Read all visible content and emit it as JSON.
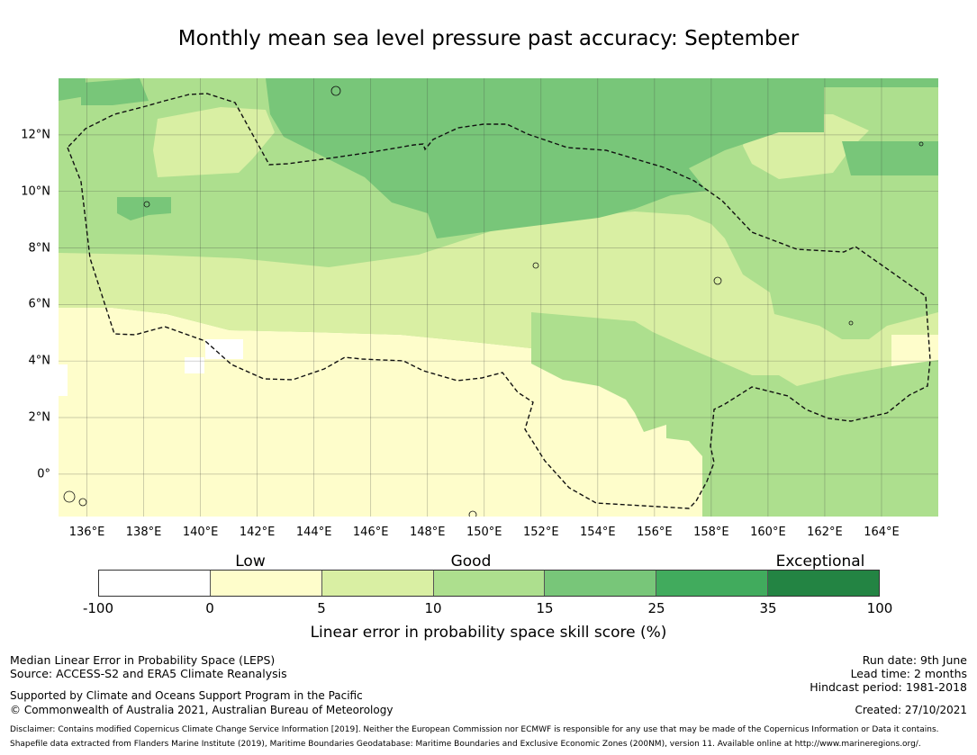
{
  "title": "Monthly mean sea level pressure past accuracy: September",
  "map": {
    "longitude_labels": [
      "136°E",
      "138°E",
      "140°E",
      "142°E",
      "144°E",
      "146°E",
      "148°E",
      "150°E",
      "152°E",
      "154°E",
      "156°E",
      "158°E",
      "160°E",
      "162°E",
      "164°E"
    ],
    "latitude_labels": [
      "12°N",
      "10°N",
      "8°N",
      "6°N",
      "4°N",
      "2°N",
      "0°"
    ],
    "region": {
      "lon_range": [
        135,
        166
      ],
      "lat_range": [
        -1.5,
        14
      ]
    },
    "boundary": "Exclusive Economic Zone (dashed)",
    "field_summary": {
      "0-5": "south-west, south-central and equatorial waters",
      "5-10": "central band 3°N–9°N and small eastern patches",
      "10-15": "west, far east and south-east sectors",
      "15-25": "northern band north of 9°N"
    }
  },
  "legend": {
    "category_labels": [
      "Low",
      "Good",
      "Exceptional"
    ],
    "ticks": [
      "-100",
      "0",
      "5",
      "10",
      "15",
      "25",
      "35",
      "100"
    ],
    "colors": [
      "#ffffff",
      "#fefdcb",
      "#d9efa3",
      "#addf8e",
      "#78c679",
      "#41ab5d",
      "#238443"
    ],
    "label": "Linear error in probability space skill score (%)"
  },
  "footer": {
    "left1": "Median Linear Error in Probability Space (LEPS)",
    "left2": "Source: ACCESS-S2 and ERA5 Climate Reanalysis",
    "left3": "Supported by Climate and Oceans Support Program in the Pacific",
    "left4": "© Commonwealth of Australia 2021, Australian Bureau of Meteorology",
    "right1": "Run date: 9th June",
    "right2": "Lead time: 2 months",
    "right3": "Hindcast period: 1981-2018",
    "created": "Created: 27/10/2021",
    "disclaimer": "Disclaimer: Contains modified Copernicus Climate Change Service Information [2019]. Neither the European Commission nor ECMWF is responsible for any use that may be made of the Copernicus Information or Data it contains.",
    "shapefile": "Shapefile data extracted from Flanders Marine Institute (2019), Maritime Boundaries Geodatabase: Maritime Boundaries and Exclusive Economic Zones (200NM), version 11. Available online at http://www.marineregions.org/."
  }
}
